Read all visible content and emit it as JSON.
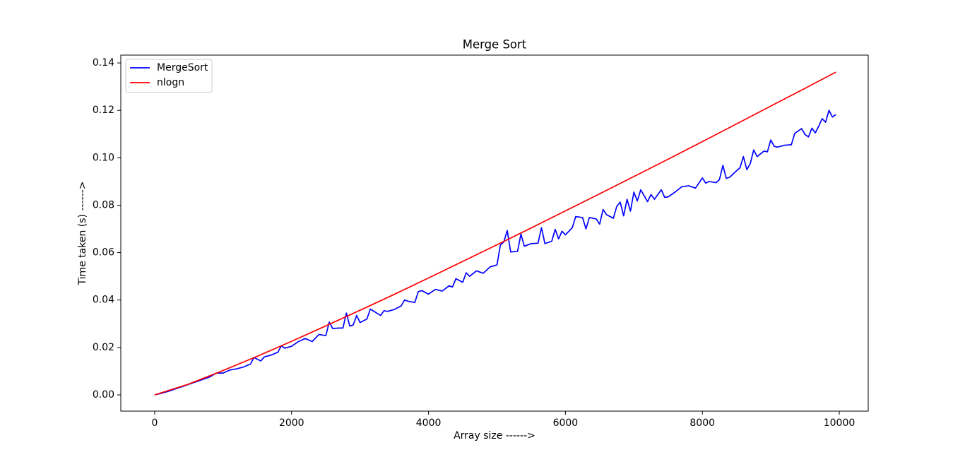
{
  "chart_data": {
    "type": "line",
    "title": "Merge Sort",
    "x_label": "Array size ------>",
    "y_label": "Time taken (s) ------>",
    "xlim": [
      -495,
      10423
    ],
    "ylim": [
      -0.00685,
      0.1433
    ],
    "xticks": [
      0,
      2000,
      4000,
      6000,
      8000,
      10000
    ],
    "yticks": [
      {
        "value": 0,
        "label": "0.00"
      },
      0.02,
      0.04,
      0.06,
      0.08,
      {
        "value": 0.1,
        "label": "0.10"
      },
      0.12,
      0.14
    ],
    "legend": "upper left",
    "grid": false,
    "series": [
      {
        "name": "MergeSort",
        "color": "#0000ff",
        "x": [
          0,
          100,
          200,
          300,
          400,
          500,
          600,
          700,
          800,
          900,
          1000,
          1100,
          1200,
          1300,
          1400,
          1450,
          1550,
          1600,
          1700,
          1800,
          1850,
          1900,
          2000,
          2100,
          2200,
          2300,
          2400,
          2500,
          2550,
          2600,
          2700,
          2750,
          2800,
          2850,
          2900,
          2950,
          3000,
          3100,
          3150,
          3300,
          3350,
          3400,
          3500,
          3600,
          3650,
          3700,
          3800,
          3850,
          3900,
          4000,
          4100,
          4200,
          4300,
          4350,
          4400,
          4500,
          4550,
          4600,
          4700,
          4800,
          4900,
          5000,
          5050,
          5100,
          5150,
          5200,
          5300,
          5350,
          5400,
          5500,
          5600,
          5650,
          5700,
          5800,
          5850,
          5900,
          5950,
          6000,
          6100,
          6150,
          6250,
          6300,
          6350,
          6450,
          6500,
          6550,
          6600,
          6700,
          6750,
          6800,
          6850,
          6900,
          6950,
          7000,
          7050,
          7100,
          7200,
          7250,
          7300,
          7400,
          7450,
          7500,
          7600,
          7700,
          7800,
          7900,
          8000,
          8050,
          8100,
          8200,
          8250,
          8300,
          8350,
          8400,
          8500,
          8550,
          8600,
          8650,
          8700,
          8750,
          8800,
          8900,
          8950,
          9000,
          9050,
          9100,
          9200,
          9300,
          9350,
          9450,
          9500,
          9550,
          9600,
          9650,
          9700,
          9750,
          9800,
          9850,
          9900,
          9950
        ],
        "values": [
          0,
          0.0007,
          0.0015,
          0.0025,
          0.0035,
          0.0045,
          0.0055,
          0.0065,
          0.0075,
          0.0092,
          0.0092,
          0.0105,
          0.011,
          0.0118,
          0.013,
          0.0158,
          0.0143,
          0.016,
          0.0168,
          0.018,
          0.0207,
          0.0197,
          0.0205,
          0.0225,
          0.0238,
          0.0225,
          0.0255,
          0.025,
          0.0307,
          0.028,
          0.0282,
          0.0282,
          0.0345,
          0.029,
          0.0295,
          0.0335,
          0.0305,
          0.032,
          0.0362,
          0.0335,
          0.0355,
          0.0352,
          0.036,
          0.0375,
          0.04,
          0.0395,
          0.039,
          0.0435,
          0.044,
          0.0425,
          0.0445,
          0.0438,
          0.046,
          0.0455,
          0.049,
          0.0475,
          0.0515,
          0.05,
          0.0523,
          0.0513,
          0.054,
          0.0548,
          0.0632,
          0.0645,
          0.0693,
          0.0603,
          0.0605,
          0.0678,
          0.0627,
          0.0638,
          0.064,
          0.0705,
          0.0638,
          0.0648,
          0.0698,
          0.0658,
          0.069,
          0.0675,
          0.0705,
          0.0752,
          0.0748,
          0.07,
          0.0748,
          0.0742,
          0.072,
          0.0782,
          0.076,
          0.0745,
          0.0795,
          0.0813,
          0.0755,
          0.0825,
          0.0775,
          0.0855,
          0.0818,
          0.0865,
          0.0815,
          0.0845,
          0.0825,
          0.0865,
          0.0833,
          0.0835,
          0.0855,
          0.0878,
          0.0882,
          0.0872,
          0.0915,
          0.0893,
          0.09,
          0.0895,
          0.0908,
          0.0968,
          0.0913,
          0.0918,
          0.0945,
          0.0958,
          0.1005,
          0.095,
          0.0975,
          0.1033,
          0.1005,
          0.1028,
          0.1025,
          0.1075,
          0.1048,
          0.1045,
          0.1053,
          0.1055,
          0.1103,
          0.1123,
          0.1098,
          0.1088,
          0.1125,
          0.1105,
          0.1133,
          0.1165,
          0.115,
          0.12,
          0.1172,
          0.1182
        ]
      },
      {
        "name": "nlogn",
        "color": "#ff0000",
        "x": [
          0,
          500,
          1000,
          1500,
          2000,
          2500,
          3000,
          3500,
          4000,
          4500,
          5000,
          5500,
          6000,
          6500,
          7000,
          7500,
          8000,
          8500,
          9000,
          9500,
          9950
        ],
        "values": [
          0,
          0.0046,
          0.0103,
          0.0163,
          0.0226,
          0.0291,
          0.0357,
          0.0424,
          0.0493,
          0.0563,
          0.0633,
          0.0704,
          0.0776,
          0.0848,
          0.0921,
          0.0994,
          0.1068,
          0.1143,
          0.1218,
          0.1293,
          0.1361
        ]
      }
    ]
  }
}
